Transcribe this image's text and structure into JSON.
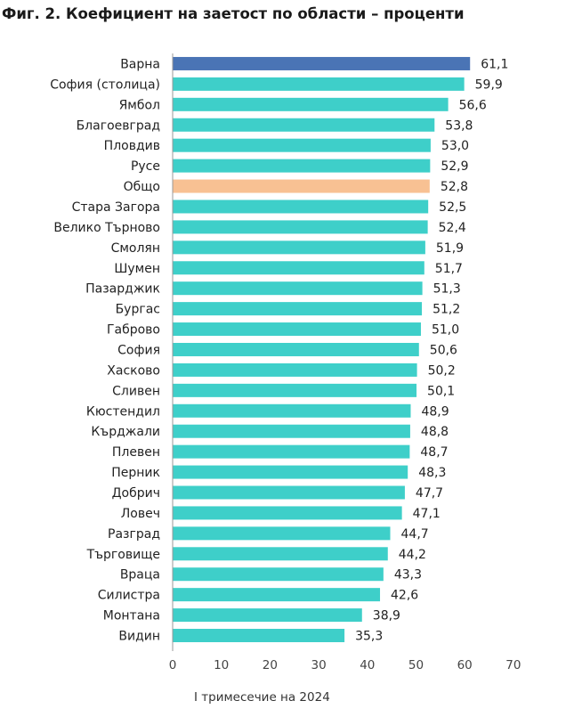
{
  "chart_data": {
    "type": "bar",
    "orientation": "horizontal",
    "title": "Фиг. 2. Коефициент на заетост по области – проценти",
    "xlabel": "I тримесечие на 2024",
    "ylabel": "",
    "xlim": [
      0,
      70
    ],
    "xticks": [
      "0",
      "10",
      "20",
      "30",
      "40",
      "50",
      "60",
      "70"
    ],
    "grid": false,
    "categories": [
      "Варна",
      "София (столица)",
      "Ямбол",
      "Благоевград",
      "Пловдив",
      "Русе",
      "Общо",
      "Стара Загора",
      "Велико Търново",
      "Смолян",
      "Шумен",
      "Пазарджик",
      "Бургас",
      "Габрово",
      "София",
      "Хасково",
      "Сливен",
      "Кюстендил",
      "Кърджали",
      "Плевен",
      "Перник",
      "Добрич",
      "Ловеч",
      "Разград",
      "Търговище",
      "Враца",
      "Силистра",
      "Монтана",
      "Видин"
    ],
    "values": [
      61.1,
      59.9,
      56.6,
      53.8,
      53.0,
      52.9,
      52.8,
      52.5,
      52.4,
      51.9,
      51.7,
      51.3,
      51.2,
      51.0,
      50.6,
      50.2,
      50.1,
      48.9,
      48.8,
      48.7,
      48.3,
      47.7,
      47.1,
      44.7,
      44.2,
      43.3,
      42.6,
      38.9,
      35.3
    ],
    "value_labels": [
      "61,1",
      "59,9",
      "56,6",
      "53,8",
      "53,0",
      "52,9",
      "52,8",
      "52,5",
      "52,4",
      "51,9",
      "51,7",
      "51,3",
      "51,2",
      "51,0",
      "50,6",
      "50,2",
      "50,1",
      "48,9",
      "48,8",
      "48,7",
      "48,3",
      "47,7",
      "47,1",
      "44,7",
      "44,2",
      "43,3",
      "42,6",
      "38,9",
      "35,3"
    ],
    "colors": {
      "default": "#3ecfc9",
      "Варна": "#4a74b5",
      "Общо": "#f8c193"
    }
  }
}
